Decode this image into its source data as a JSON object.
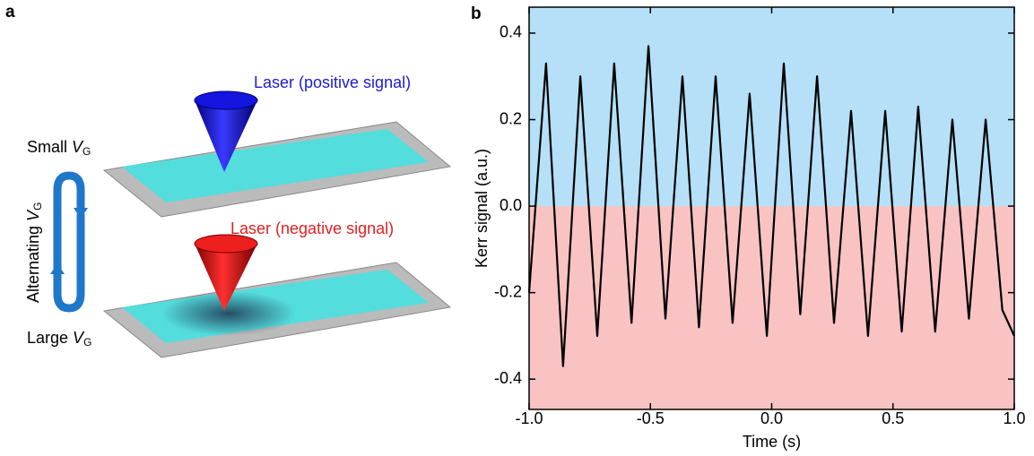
{
  "panel_a": {
    "label": "a",
    "laser_positive": "Laser (positive signal)",
    "laser_negative": "Laser (negative signal)",
    "small": {
      "text": "Small ",
      "var": "V",
      "sub": "G"
    },
    "large": {
      "text": "Large ",
      "var": "V",
      "sub": "G"
    },
    "alternating": {
      "text": "Alternating ",
      "var": "V",
      "sub": "G"
    }
  },
  "chart_data": {
    "type": "line",
    "panel_label": "b",
    "x_label": "Time (s)",
    "y_label": "Kerr signal (a.u.)",
    "x": [
      -1.0,
      -0.93,
      -0.86,
      -0.789,
      -0.719,
      -0.649,
      -0.578,
      -0.508,
      -0.438,
      -0.368,
      -0.3,
      -0.231,
      -0.161,
      -0.091,
      -0.02,
      0.05,
      0.118,
      0.187,
      0.257,
      0.327,
      0.397,
      0.468,
      0.536,
      0.604,
      0.674,
      0.745,
      0.813,
      0.882,
      0.951,
      1.0
    ],
    "y": [
      -0.2,
      0.33,
      -0.37,
      0.3,
      -0.3,
      0.33,
      -0.27,
      0.37,
      -0.26,
      0.3,
      -0.28,
      0.3,
      -0.27,
      0.26,
      -0.3,
      0.33,
      -0.25,
      0.3,
      -0.27,
      0.22,
      -0.3,
      0.22,
      -0.29,
      0.23,
      -0.29,
      0.2,
      -0.26,
      0.2,
      -0.24,
      -0.3
    ],
    "color": "#000000",
    "positive_color": "#b5e0f7",
    "negative_color": "#f9c3c3",
    "xlim": [
      -1.0,
      1.0
    ],
    "xticks": [
      {
        "value": -1,
        "label": "-1.0"
      },
      -0.5,
      {
        "value": 0,
        "label": "0.0"
      },
      0.5,
      {
        "value": 1,
        "label": "1.0"
      }
    ],
    "ylim": [
      -0.47,
      0.46
    ],
    "yticks": [
      -0.4,
      -0.2,
      {
        "value": 0,
        "label": "0.0"
      },
      0.2,
      0.4
    ]
  }
}
